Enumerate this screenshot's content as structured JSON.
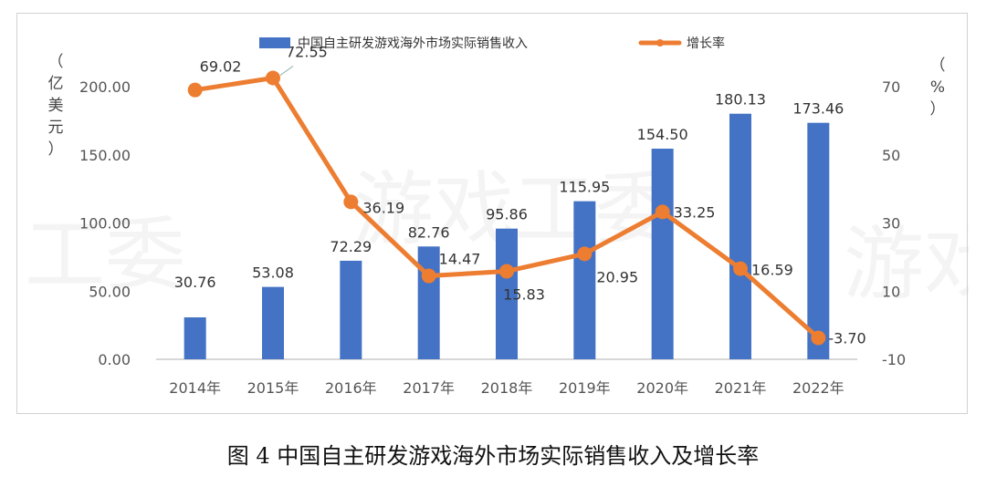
{
  "caption": "图 4 中国自主研发游戏海外市场实际销售收入及增长率",
  "watermark": [
    "工委",
    "游戏工委",
    "游戏"
  ],
  "colors": {
    "bar": "#4472C4",
    "line": "#ED7D31",
    "grid": "#e3e3e3",
    "axis": "#bfbfbf"
  },
  "chart_data": {
    "type": "bar+line",
    "categories": [
      "2014年",
      "2015年",
      "2016年",
      "2017年",
      "2018年",
      "2019年",
      "2020年",
      "2021年",
      "2022年"
    ],
    "series": [
      {
        "name": "中国自主研发游戏海外市场实际销售收入",
        "kind": "bar",
        "axis": "left",
        "values": [
          30.76,
          53.08,
          72.29,
          82.76,
          95.86,
          115.95,
          154.5,
          180.13,
          173.46
        ],
        "labels": [
          "30.76",
          "53.08",
          "72.29",
          "82.76",
          "95.86",
          "115.95",
          "154.50",
          "180.13",
          "173.46"
        ]
      },
      {
        "name": "增长率",
        "kind": "line",
        "axis": "right",
        "values": [
          69.02,
          72.55,
          36.19,
          14.47,
          15.83,
          20.95,
          33.25,
          16.59,
          -3.7
        ],
        "labels": [
          "69.02",
          "72.55",
          "36.19",
          "14.47",
          "15.83",
          "20.95",
          "33.25",
          "16.59",
          "-3.70"
        ]
      }
    ],
    "left_axis": {
      "title_chars": [
        "（",
        "亿",
        "美",
        "元",
        "）"
      ],
      "ylim": [
        0,
        200
      ],
      "ticks": [
        "0.00",
        "50.00",
        "100.00",
        "150.00",
        "200.00"
      ]
    },
    "right_axis": {
      "title_chars": [
        "（",
        "%",
        "）"
      ],
      "ylim": [
        -10,
        70
      ],
      "ticks": [
        "-10",
        "10",
        "30",
        "50",
        "70"
      ]
    },
    "legend": "top-center",
    "grid": false
  }
}
